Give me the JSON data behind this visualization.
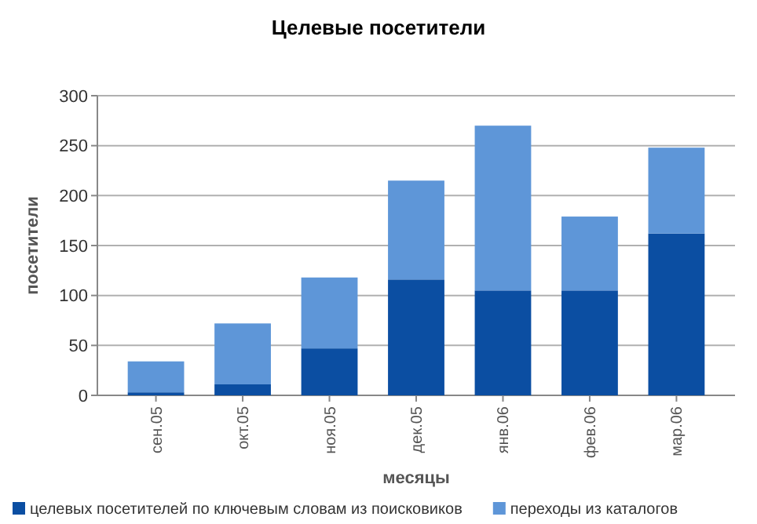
{
  "chart_data": {
    "type": "bar",
    "title": "Целевые посетители",
    "xlabel": "месяцы",
    "ylabel": "посетители",
    "categories": [
      "сен.05",
      "окт.05",
      "ноя.05",
      "дек.05",
      "янв.06",
      "фев.06",
      "мар.06"
    ],
    "series": [
      {
        "name": "целевых посетителей по ключевым словам из поисковиков",
        "color": "#0b4ea2",
        "values": [
          3,
          11,
          47,
          116,
          105,
          105,
          162
        ]
      },
      {
        "name": "переходы из каталогов",
        "color": "#5e96d8",
        "values": [
          31,
          61,
          71,
          99,
          165,
          74,
          86
        ]
      }
    ],
    "stacked": true,
    "ylim": [
      0,
      300
    ],
    "yticks": [
      0,
      50,
      100,
      150,
      200,
      250,
      300
    ],
    "grid": "y",
    "legend": "bottom"
  }
}
